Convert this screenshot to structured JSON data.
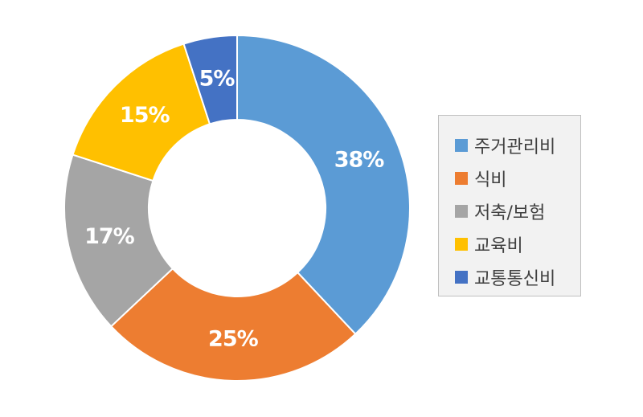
{
  "chart_data": {
    "type": "pie",
    "subtype": "donut",
    "legend_position": "right",
    "categories": [
      "주거관리비",
      "식비",
      "저축/보험",
      "교육비",
      "교통통신비"
    ],
    "values": [
      38,
      25,
      17,
      15,
      5
    ],
    "labels": [
      "38%",
      "25%",
      "17%",
      "15%",
      "5%"
    ],
    "colors": [
      "#5b9bd5",
      "#ed7d31",
      "#a5a5a5",
      "#ffc000",
      "#4472c4"
    ]
  }
}
